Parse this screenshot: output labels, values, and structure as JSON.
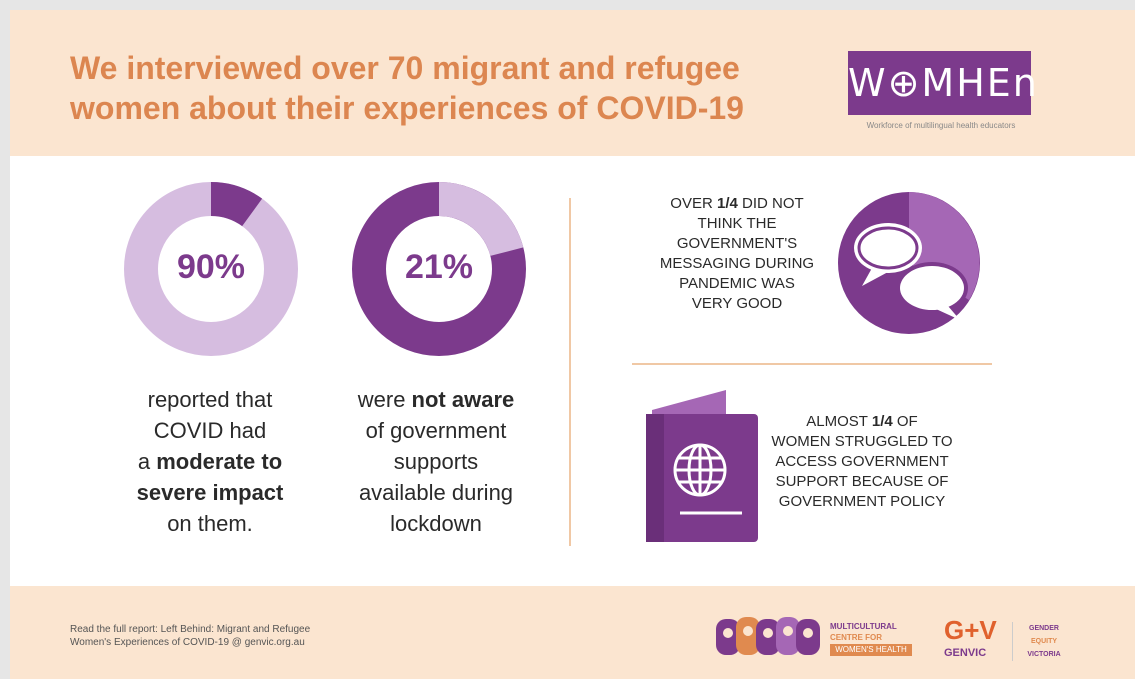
{
  "header": {
    "title_line1": "We interviewed over 70 migrant and refugee",
    "title_line2": "women about their experiences of COVID-19",
    "logo_text": "W⊕MHEn",
    "logo_subtitle": "Workforce of multilingual health educators"
  },
  "stats": {
    "impact": {
      "percent_value": 90,
      "percent_label": "90%",
      "caption_line1": "reported that",
      "caption_line2": "COVID had",
      "caption_line3_prefix": "a ",
      "caption_line3_bold": "moderate to",
      "caption_line4_bold": "severe impact",
      "caption_line5": "on them."
    },
    "awareness": {
      "percent_value": 21,
      "percent_label": "21%",
      "caption_line1_prefix": "were ",
      "caption_line1_bold": "not aware",
      "caption_line2": "of government",
      "caption_line3": "supports",
      "caption_line4": "available during",
      "caption_line5": "lockdown"
    },
    "messaging": {
      "line1_prefix": "OVER ",
      "line1_bold": "1/4",
      "line1_suffix": " DID NOT",
      "line2": "THINK THE",
      "line3": "GOVERNMENT'S",
      "line4": "MESSAGING DURING",
      "line5": "PANDEMIC WAS",
      "line6": "VERY GOOD"
    },
    "access": {
      "line1_prefix": "ALMOST ",
      "line1_bold": "1/4",
      "line1_suffix": " OF",
      "line2": "WOMEN STRUGGLED TO",
      "line3": "ACCESS GOVERNMENT",
      "line4": "SUPPORT BECAUSE OF",
      "line5": "GOVERNMENT POLICY"
    }
  },
  "footer": {
    "report_line1": "Read the full report: Left Behind: Migrant and Refugee",
    "report_line2": "Women's Experiences of COVID-19 @ genvic.org.au",
    "mchw_line1": "MULTICULTURAL",
    "mchw_line2": "CENTRE FOR",
    "mchw_line3": "WOMEN'S HEALTH",
    "genvic_mark": "G+V",
    "genvic_label": "GENVIC",
    "gev_line1": "GENDER",
    "gev_line2": "EQUITY",
    "gev_line3": "VICTORIA"
  },
  "colors": {
    "accent_purple": "#7c3a8c",
    "light_purple": "#d6bde0",
    "mid_purple": "#a567b5",
    "orange": "#dc8650",
    "peach_bg": "#fbe5d0"
  }
}
